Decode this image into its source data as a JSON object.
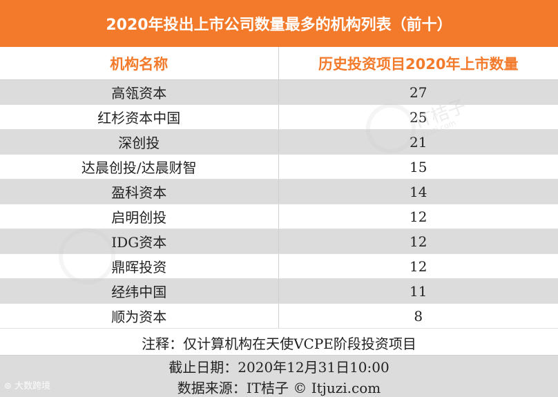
{
  "title": "2020年投出上市公司数量最多的机构列表（前十）",
  "table": {
    "headers": [
      "机构名称",
      "历史投资项目2020年上市数量"
    ],
    "rows": [
      {
        "name": "高瓴资本",
        "count": "27"
      },
      {
        "name": "红杉资本中国",
        "count": "25"
      },
      {
        "name": "深创投",
        "count": "21"
      },
      {
        "name": "达晨创投/达晨财智",
        "count": "15"
      },
      {
        "name": "盈科资本",
        "count": "14"
      },
      {
        "name": "启明创投",
        "count": "12"
      },
      {
        "name": "IDG资本",
        "count": "12"
      },
      {
        "name": "鼎晖投资",
        "count": "12"
      },
      {
        "name": "经纬中国",
        "count": "11"
      },
      {
        "name": "顺为资本",
        "count": "8"
      }
    ]
  },
  "note": "注释：仅计算机构在天使VCPE阶段投资项目",
  "footer": {
    "date_line": "截止日期：2020年12月31日10:00",
    "source_line": "数据来源：IT桔子 © Itjuzi.com"
  },
  "watermarks": {
    "main_text": "IT桔子",
    "sub_text": "itjuzi.com",
    "corner_brand": "大数跨境"
  },
  "colors": {
    "accent": "#f37a2b",
    "stripe": "#dcdcdc",
    "text": "#222222"
  }
}
